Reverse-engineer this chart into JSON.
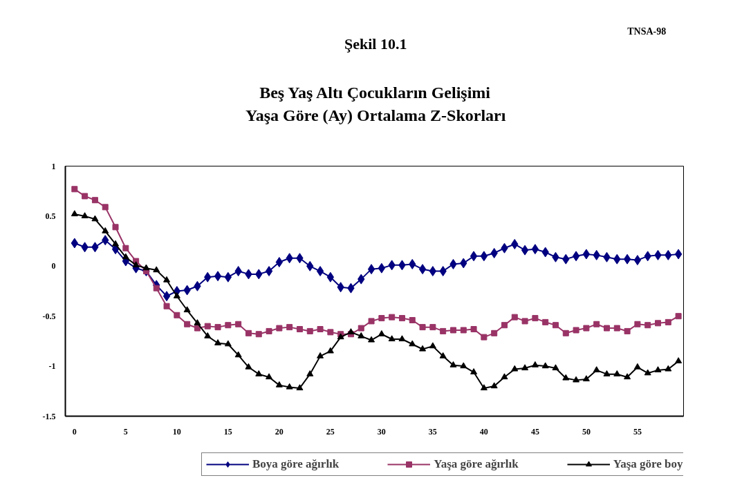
{
  "chart_data": {
    "type": "line",
    "title": "Şekil 10.1",
    "subtitle": "Beş Yaş Altı Çocukların Gelişimi\nYaşa Göre (Ay) Ortalama Z-Skorları",
    "annotations": [
      "TNSA-98"
    ],
    "x": [
      0,
      1,
      2,
      3,
      4,
      5,
      6,
      7,
      8,
      9,
      10,
      11,
      12,
      13,
      14,
      15,
      16,
      17,
      18,
      19,
      20,
      21,
      22,
      23,
      24,
      25,
      26,
      27,
      28,
      29,
      30,
      31,
      32,
      33,
      34,
      35,
      36,
      37,
      38,
      39,
      40,
      41,
      42,
      43,
      44,
      45,
      46,
      47,
      48,
      49,
      50,
      51,
      52,
      53,
      54,
      55,
      56,
      57,
      58,
      59
    ],
    "xlim": [
      -0.9,
      59.5
    ],
    "xticks": [
      0,
      5,
      10,
      15,
      20,
      25,
      30,
      35,
      40,
      45,
      50,
      55
    ],
    "ylim": [
      -1.5,
      1
    ],
    "yticks": [
      -1.5,
      -1,
      -0.5,
      0,
      0.5,
      1
    ],
    "grid": false,
    "legend": "bottom",
    "series": [
      {
        "name": "Boya göre ağırlık",
        "color": "#000080",
        "marker": "diamond",
        "values": [
          0.23,
          0.19,
          0.19,
          0.26,
          0.17,
          0.05,
          -0.02,
          -0.05,
          -0.19,
          -0.3,
          -0.25,
          -0.24,
          -0.2,
          -0.11,
          -0.1,
          -0.11,
          -0.05,
          -0.08,
          -0.08,
          -0.05,
          0.04,
          0.08,
          0.08,
          0.0,
          -0.05,
          -0.11,
          -0.21,
          -0.22,
          -0.13,
          -0.03,
          -0.02,
          0.01,
          0.01,
          0.02,
          -0.03,
          -0.05,
          -0.05,
          0.02,
          0.03,
          0.1,
          0.1,
          0.13,
          0.18,
          0.22,
          0.16,
          0.17,
          0.14,
          0.09,
          0.07,
          0.1,
          0.12,
          0.11,
          0.09,
          0.07,
          0.07,
          0.06,
          0.1,
          0.11,
          0.11,
          0.12
        ]
      },
      {
        "name": "Yaşa göre ağırlık",
        "color": "#993366",
        "marker": "square",
        "values": [
          0.77,
          0.7,
          0.66,
          0.59,
          0.39,
          0.18,
          0.05,
          -0.05,
          -0.22,
          -0.4,
          -0.49,
          -0.58,
          -0.62,
          -0.6,
          -0.61,
          -0.59,
          -0.58,
          -0.67,
          -0.68,
          -0.65,
          -0.62,
          -0.61,
          -0.63,
          -0.65,
          -0.63,
          -0.66,
          -0.68,
          -0.68,
          -0.62,
          -0.55,
          -0.52,
          -0.51,
          -0.52,
          -0.54,
          -0.61,
          -0.61,
          -0.65,
          -0.64,
          -0.64,
          -0.63,
          -0.71,
          -0.67,
          -0.59,
          -0.51,
          -0.55,
          -0.52,
          -0.56,
          -0.59,
          -0.67,
          -0.64,
          -0.62,
          -0.58,
          -0.62,
          -0.62,
          -0.65,
          -0.58,
          -0.59,
          -0.57,
          -0.56,
          -0.5
        ]
      },
      {
        "name": "Yaşa göre boy",
        "color": "#000000",
        "marker": "triangle",
        "values": [
          0.52,
          0.5,
          0.47,
          0.35,
          0.22,
          0.09,
          0.01,
          -0.02,
          -0.04,
          -0.14,
          -0.3,
          -0.44,
          -0.57,
          -0.7,
          -0.77,
          -0.78,
          -0.89,
          -1.01,
          -1.08,
          -1.11,
          -1.19,
          -1.21,
          -1.22,
          -1.08,
          -0.9,
          -0.85,
          -0.71,
          -0.66,
          -0.7,
          -0.74,
          -0.68,
          -0.73,
          -0.73,
          -0.78,
          -0.83,
          -0.8,
          -0.9,
          -0.99,
          -1.0,
          -1.06,
          -1.22,
          -1.2,
          -1.11,
          -1.03,
          -1.02,
          -0.99,
          -1.0,
          -1.02,
          -1.12,
          -1.14,
          -1.13,
          -1.04,
          -1.08,
          -1.08,
          -1.11,
          -1.01,
          -1.07,
          -1.04,
          -1.03,
          -0.95
        ]
      }
    ]
  }
}
